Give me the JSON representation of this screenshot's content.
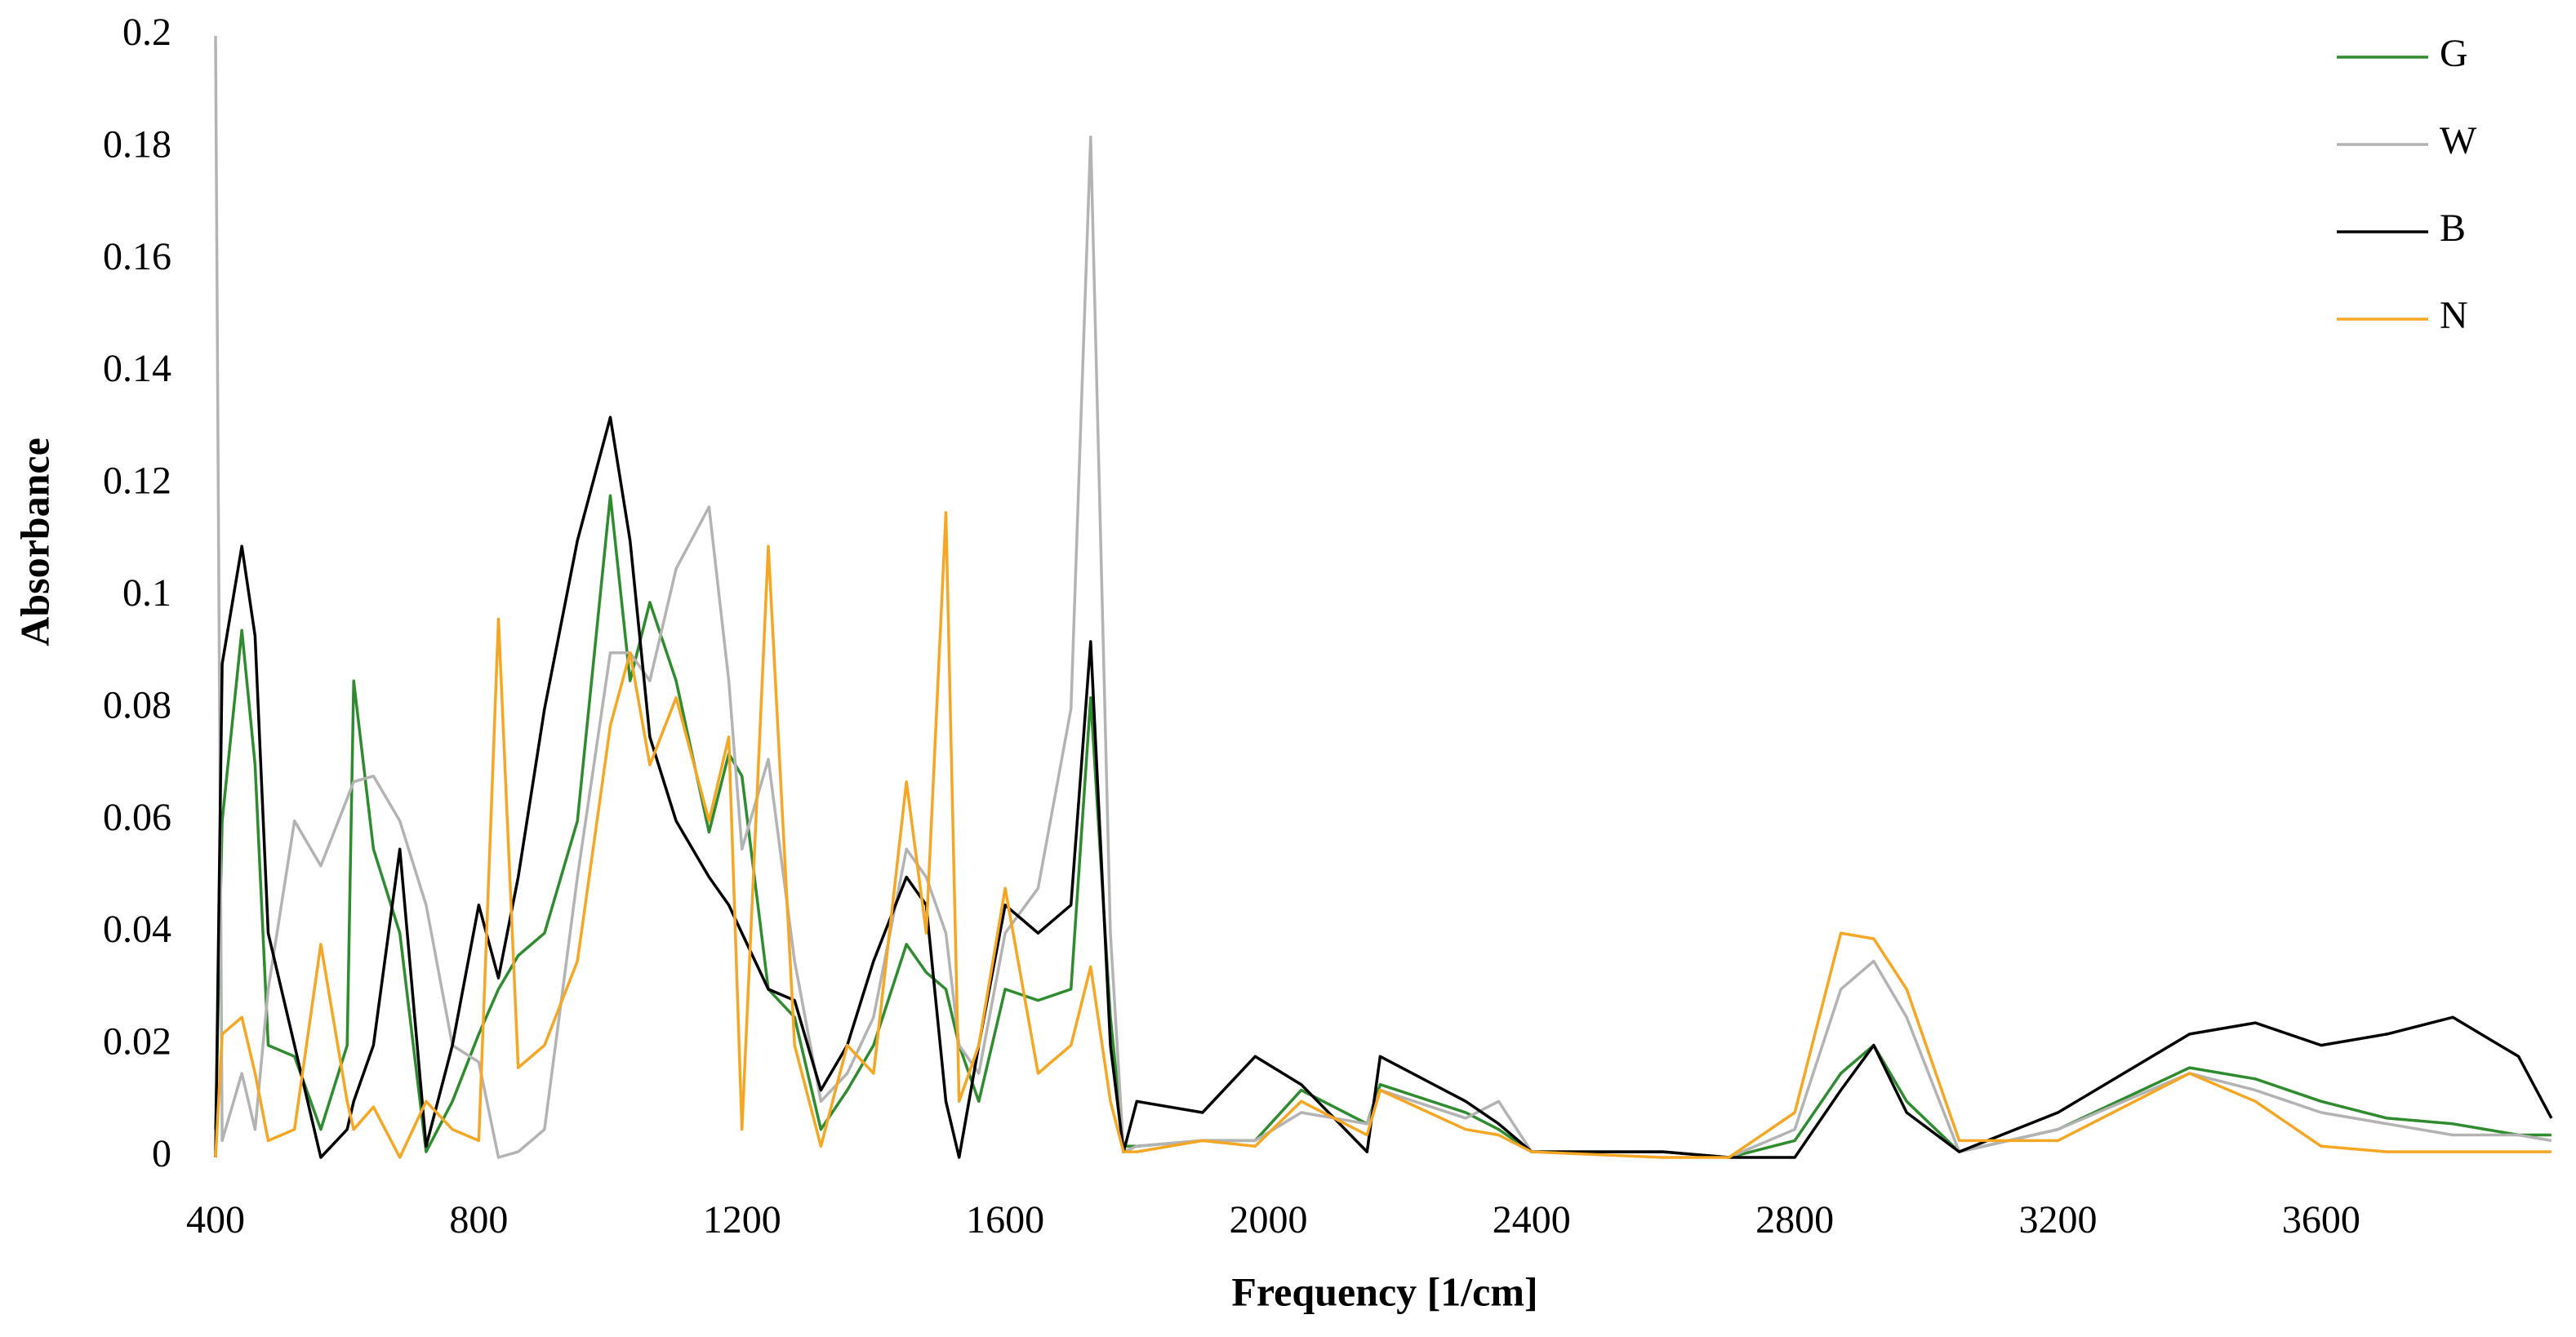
{
  "chart_data": {
    "type": "line",
    "x_label": "Frequency [1/cm]",
    "y_label": "Absorbance",
    "x": [
      400,
      410,
      440,
      460,
      480,
      520,
      560,
      600,
      610,
      640,
      680,
      720,
      760,
      800,
      830,
      860,
      900,
      950,
      1000,
      1030,
      1060,
      1100,
      1150,
      1180,
      1200,
      1240,
      1280,
      1320,
      1360,
      1400,
      1450,
      1480,
      1510,
      1530,
      1560,
      1600,
      1650,
      1700,
      1730,
      1760,
      1780,
      1800,
      1900,
      1980,
      2050,
      2150,
      2170,
      2300,
      2350,
      2400,
      2600,
      2700,
      2800,
      2870,
      2920,
      2970,
      3050,
      3200,
      3400,
      3500,
      3600,
      3700,
      3800,
      3900,
      3950
    ],
    "series": [
      {
        "name": "G",
        "color": "#2e8b2e",
        "values": [
          0.005,
          0.06,
          0.094,
          0.07,
          0.02,
          0.018,
          0.005,
          0.02,
          0.085,
          0.055,
          0.04,
          0.001,
          0.01,
          0.022,
          0.03,
          0.036,
          0.04,
          0.06,
          0.118,
          0.085,
          0.099,
          0.085,
          0.058,
          0.072,
          0.068,
          0.03,
          0.025,
          0.005,
          0.012,
          0.02,
          0.038,
          0.033,
          0.03,
          0.02,
          0.01,
          0.03,
          0.028,
          0.03,
          0.082,
          0.025,
          0.002,
          0.002,
          0.003,
          0.003,
          0.012,
          0.006,
          0.013,
          0.008,
          0.005,
          0.001,
          0.001,
          0,
          0.003,
          0.015,
          0.02,
          0.01,
          0.001,
          0.005,
          0.016,
          0.014,
          0.01,
          0.007,
          0.006,
          0.004,
          0.004
        ]
      },
      {
        "name": "W",
        "color": "#b3b3b3",
        "values": [
          0.2,
          0.003,
          0.015,
          0.005,
          0.03,
          0.06,
          0.052,
          0.064,
          0.067,
          0.068,
          0.06,
          0.045,
          0.02,
          0.017,
          0,
          0.001,
          0.005,
          0.05,
          0.09,
          0.09,
          0.085,
          0.105,
          0.116,
          0.085,
          0.055,
          0.071,
          0.035,
          0.01,
          0.015,
          0.025,
          0.055,
          0.05,
          0.04,
          0.02,
          0.015,
          0.04,
          0.048,
          0.08,
          0.182,
          0.04,
          0.001,
          0.002,
          0.003,
          0.003,
          0.008,
          0.006,
          0.012,
          0.007,
          0.01,
          0.001,
          0.001,
          0,
          0.005,
          0.03,
          0.035,
          0.025,
          0.001,
          0.005,
          0.015,
          0.012,
          0.008,
          0.006,
          0.004,
          0.004,
          0.003
        ]
      },
      {
        "name": "B",
        "color": "#000000",
        "values": [
          0,
          0.088,
          0.109,
          0.093,
          0.04,
          0.02,
          0,
          0.005,
          0.01,
          0.02,
          0.055,
          0.002,
          0.02,
          0.045,
          0.032,
          0.05,
          0.08,
          0.11,
          0.132,
          0.11,
          0.075,
          0.06,
          0.05,
          0.045,
          0.04,
          0.03,
          0.028,
          0.012,
          0.02,
          0.035,
          0.05,
          0.045,
          0.01,
          0,
          0.02,
          0.045,
          0.04,
          0.045,
          0.092,
          0.02,
          0.001,
          0.01,
          0.008,
          0.018,
          0.013,
          0.001,
          0.018,
          0.01,
          0.006,
          0.001,
          0.001,
          0,
          0,
          0.012,
          0.02,
          0.008,
          0.001,
          0.008,
          0.022,
          0.024,
          0.02,
          0.022,
          0.025,
          0.018,
          0.007
        ]
      },
      {
        "name": "N",
        "color": "#f5a623",
        "values": [
          0,
          0.022,
          0.025,
          0.015,
          0.003,
          0.005,
          0.038,
          0.01,
          0.005,
          0.009,
          0,
          0.01,
          0.005,
          0.003,
          0.096,
          0.016,
          0.02,
          0.035,
          0.077,
          0.09,
          0.07,
          0.082,
          0.06,
          0.075,
          0.005,
          0.109,
          0.02,
          0.002,
          0.02,
          0.015,
          0.067,
          0.04,
          0.115,
          0.01,
          0.02,
          0.048,
          0.015,
          0.02,
          0.034,
          0.01,
          0.001,
          0.001,
          0.003,
          0.002,
          0.01,
          0.004,
          0.012,
          0.005,
          0.004,
          0.001,
          0,
          0,
          0.008,
          0.04,
          0.039,
          0.03,
          0.003,
          0.003,
          0.015,
          0.01,
          0.002,
          0.001,
          0.001,
          0.001,
          0.001
        ]
      }
    ],
    "xlim": [
      400,
      3960
    ],
    "xticks": [
      400,
      800,
      1200,
      1600,
      2000,
      2400,
      2800,
      3200,
      3600
    ],
    "ylim": [
      0,
      0.2
    ],
    "yticks": [
      0,
      0.02,
      0.04,
      0.06,
      0.08,
      0.1,
      0.12,
      0.14,
      0.16,
      0.18,
      0.2
    ],
    "grid": false,
    "legend": "top-right"
  }
}
